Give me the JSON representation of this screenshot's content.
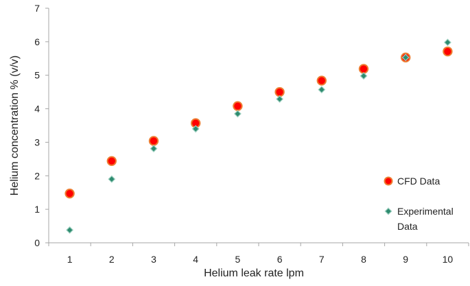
{
  "chart_data": {
    "type": "scatter",
    "title": "",
    "xlabel": "Helium leak rate lpm",
    "ylabel": "Helium concentration % (v/v)",
    "xlim": [
      0.5,
      10.5
    ],
    "ylim": [
      0,
      7
    ],
    "x_ticks": [
      "1",
      "2",
      "3",
      "4",
      "5",
      "6",
      "7",
      "8",
      "9",
      "10"
    ],
    "y_ticks": [
      "0",
      "1",
      "2",
      "3",
      "4",
      "5",
      "6",
      "7"
    ],
    "grid": false,
    "legend_position": "right",
    "series": [
      {
        "name": "CFD Data",
        "marker": "circle",
        "color": "#ff0000",
        "edge_color": "#ed7d31",
        "x": [
          1,
          2,
          3,
          4,
          5,
          6,
          7,
          8,
          9,
          10
        ],
        "y": [
          1.47,
          2.44,
          3.04,
          3.57,
          4.08,
          4.5,
          4.84,
          5.19,
          5.53,
          5.71
        ]
      },
      {
        "name": "Experimental Data",
        "marker": "diamond",
        "color": "#2e8b6f",
        "edge_color": "#9ccfbf",
        "x": [
          1,
          2,
          3,
          4,
          5,
          6,
          7,
          8,
          9,
          10
        ],
        "y": [
          0.38,
          1.9,
          2.81,
          3.4,
          3.85,
          4.29,
          4.57,
          4.98,
          5.53,
          5.98
        ]
      }
    ],
    "legend": {
      "entries": [
        {
          "lines": [
            "CFD Data"
          ]
        },
        {
          "lines": [
            "Experimental",
            "Data"
          ]
        }
      ]
    }
  }
}
